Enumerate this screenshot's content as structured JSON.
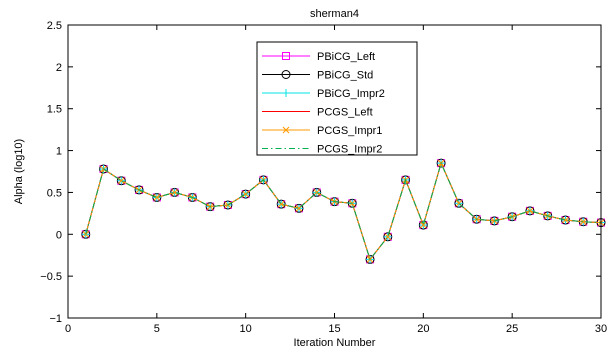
{
  "chart_data": {
    "type": "line",
    "title": "sherman4",
    "xlabel": "Iteration Number",
    "ylabel": "Alpha (log10)",
    "xlim": [
      0,
      30
    ],
    "ylim": [
      -1,
      2.5
    ],
    "xticks": [
      0,
      5,
      10,
      15,
      20,
      25,
      30
    ],
    "yticks": [
      -1,
      -0.5,
      0,
      0.5,
      1,
      1.5,
      2,
      2.5
    ],
    "xtick_labels": [
      "0",
      "5",
      "10",
      "15",
      "20",
      "25",
      "30"
    ],
    "ytick_labels": [
      "−1",
      "−0.5",
      "0",
      "0.5",
      "1",
      "1.5",
      "2",
      "2.5"
    ],
    "grid": false,
    "legend_position": "top-center",
    "x": [
      1,
      2,
      3,
      4,
      5,
      6,
      7,
      8,
      9,
      10,
      11,
      12,
      13,
      14,
      15,
      16,
      17,
      18,
      19,
      20,
      21,
      22,
      23,
      24,
      25,
      26,
      27,
      28,
      29,
      30
    ],
    "series": [
      {
        "name": "PBiCG_Left",
        "color": "#ff00ff",
        "marker": "square",
        "linestyle": "solid",
        "values": [
          0.0,
          0.78,
          0.64,
          0.53,
          0.44,
          0.5,
          0.44,
          0.33,
          0.35,
          0.48,
          0.65,
          0.36,
          0.31,
          0.5,
          0.39,
          0.37,
          -0.3,
          -0.03,
          0.65,
          0.11,
          0.85,
          0.37,
          0.18,
          0.16,
          0.21,
          0.28,
          0.22,
          0.17,
          0.15,
          0.14
        ]
      },
      {
        "name": "PBiCG_Std",
        "color": "#000000",
        "marker": "circle",
        "linestyle": "solid",
        "values": [
          0.0,
          0.78,
          0.64,
          0.53,
          0.44,
          0.5,
          0.44,
          0.33,
          0.35,
          0.48,
          0.65,
          0.36,
          0.31,
          0.5,
          0.39,
          0.37,
          -0.3,
          -0.03,
          0.65,
          0.11,
          0.85,
          0.37,
          0.18,
          0.16,
          0.21,
          0.28,
          0.22,
          0.17,
          0.15,
          0.14
        ]
      },
      {
        "name": "PBiCG_Impr2",
        "color": "#00e5e5",
        "marker": "plus",
        "linestyle": "solid",
        "values": [
          0.0,
          0.78,
          0.64,
          0.53,
          0.44,
          0.5,
          0.44,
          0.33,
          0.35,
          0.48,
          0.65,
          0.36,
          0.31,
          0.5,
          0.39,
          0.37,
          -0.3,
          -0.03,
          0.65,
          0.11,
          0.85,
          0.37,
          0.18,
          0.16,
          0.21,
          0.28,
          0.22,
          0.17,
          0.15,
          0.14
        ]
      },
      {
        "name": "PCGS_Left",
        "color": "#ff0000",
        "marker": "none",
        "linestyle": "solid",
        "values": [
          0.0,
          0.78,
          0.64,
          0.53,
          0.44,
          0.5,
          0.44,
          0.33,
          0.35,
          0.48,
          0.65,
          0.36,
          0.31,
          0.5,
          0.39,
          0.37,
          -0.3,
          -0.03,
          0.65,
          0.11,
          0.85,
          0.37,
          0.18,
          0.16,
          0.21,
          0.28,
          0.22,
          0.17,
          0.15,
          0.14
        ]
      },
      {
        "name": "PCGS_Impr1",
        "color": "#ff9900",
        "marker": "x",
        "linestyle": "solid",
        "values": [
          0.0,
          0.78,
          0.64,
          0.53,
          0.44,
          0.5,
          0.44,
          0.33,
          0.35,
          0.48,
          0.65,
          0.36,
          0.31,
          0.5,
          0.39,
          0.37,
          -0.3,
          -0.03,
          0.65,
          0.11,
          0.85,
          0.37,
          0.18,
          0.16,
          0.21,
          0.28,
          0.22,
          0.17,
          0.15,
          0.14
        ]
      },
      {
        "name": "PCGS_Impr2",
        "color": "#00b050",
        "marker": "none",
        "linestyle": "dashdot",
        "values": [
          0.0,
          0.78,
          0.64,
          0.53,
          0.44,
          0.5,
          0.44,
          0.33,
          0.35,
          0.48,
          0.65,
          0.36,
          0.31,
          0.5,
          0.39,
          0.37,
          -0.3,
          -0.03,
          0.65,
          0.11,
          0.85,
          0.37,
          0.18,
          0.16,
          0.21,
          0.28,
          0.22,
          0.17,
          0.15,
          0.14
        ]
      }
    ]
  }
}
